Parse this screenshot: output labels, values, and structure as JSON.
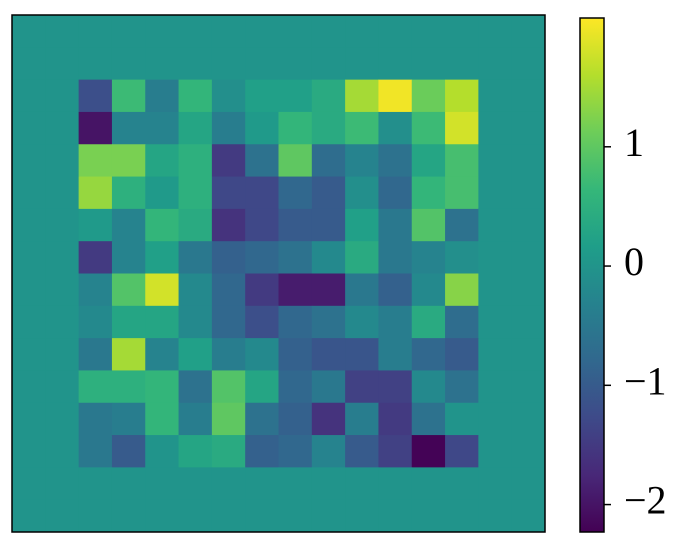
{
  "chart_data": {
    "type": "heatmap",
    "colormap": "viridis",
    "z": [
      [
        0,
        0,
        0,
        0,
        0,
        0,
        0,
        0,
        0,
        0,
        0,
        0,
        0,
        0,
        0,
        0
      ],
      [
        0,
        0,
        0,
        0,
        0,
        0,
        0,
        0,
        0,
        0,
        0,
        0,
        0,
        0,
        0,
        0
      ],
      [
        0,
        0,
        -1.2,
        0.7,
        -0.4,
        0.6,
        -0.1,
        0.2,
        0.2,
        0.4,
        1.5,
        2.0,
        1.1,
        1.6,
        0,
        0
      ],
      [
        0,
        0,
        -2.0,
        -0.3,
        -0.3,
        0.3,
        -0.4,
        0.1,
        0.6,
        0.4,
        0.7,
        -0.1,
        0.7,
        1.8,
        0,
        0
      ],
      [
        0,
        0,
        1.2,
        1.2,
        0.3,
        0.5,
        -1.5,
        -0.6,
        1.0,
        -0.7,
        -0.3,
        -0.6,
        0.3,
        0.8,
        0,
        0
      ],
      [
        0,
        0,
        1.4,
        0.5,
        0.1,
        0.5,
        -1.3,
        -1.3,
        -0.8,
        -1.0,
        -0.1,
        -0.8,
        0.6,
        0.8,
        0,
        0
      ],
      [
        0,
        0,
        0.1,
        -0.3,
        0.6,
        0.4,
        -1.6,
        -1.3,
        -1.0,
        -1.0,
        0.2,
        -0.5,
        0.9,
        -0.6,
        0,
        0
      ],
      [
        0,
        0,
        -1.5,
        -0.3,
        0.2,
        -0.5,
        -0.9,
        -0.8,
        -0.6,
        -0.2,
        0.4,
        -0.5,
        -0.3,
        -0.1,
        0,
        0
      ],
      [
        0,
        0,
        -0.3,
        0.9,
        1.8,
        -0.2,
        -0.8,
        -1.5,
        -1.9,
        -1.9,
        -0.5,
        -0.9,
        -0.2,
        1.3,
        0,
        0
      ],
      [
        0,
        0,
        -0.2,
        0.3,
        0.3,
        -0.2,
        -0.8,
        -1.2,
        -0.8,
        -0.6,
        -0.2,
        -0.4,
        0.4,
        -0.7,
        0,
        0
      ],
      [
        0,
        0,
        -0.5,
        1.5,
        -0.3,
        0.2,
        -0.4,
        -0.2,
        -0.9,
        -1.1,
        -1.1,
        -0.4,
        -0.8,
        -1.0,
        0,
        0
      ],
      [
        0,
        0,
        0.5,
        0.5,
        0.6,
        -0.6,
        0.9,
        0.3,
        -0.8,
        -0.5,
        -1.4,
        -1.4,
        -0.2,
        -0.6,
        0,
        0
      ],
      [
        0,
        0,
        -0.5,
        -0.4,
        0.6,
        -0.4,
        1.0,
        -0.6,
        -0.9,
        -1.6,
        -0.4,
        -1.5,
        -0.6,
        0.0,
        0,
        0
      ],
      [
        0,
        0,
        -0.5,
        -1.0,
        0.0,
        0.3,
        0.4,
        -0.9,
        -0.8,
        -0.3,
        -1.0,
        -1.4,
        -2.2,
        -1.3,
        0,
        0
      ],
      [
        0,
        0,
        0,
        0,
        0,
        0,
        0,
        0,
        0,
        0,
        0,
        0,
        0,
        0,
        0,
        0
      ],
      [
        0,
        0,
        0,
        0,
        0,
        0,
        0,
        0,
        0,
        0,
        0,
        0,
        0,
        0,
        0,
        0
      ]
    ],
    "colorbar_lim": [
      -2.23,
      2.08
    ],
    "colorbar_ticks": [
      {
        "value": -2,
        "label": "−2"
      },
      {
        "value": -1,
        "label": "−1"
      },
      0,
      1
    ]
  }
}
